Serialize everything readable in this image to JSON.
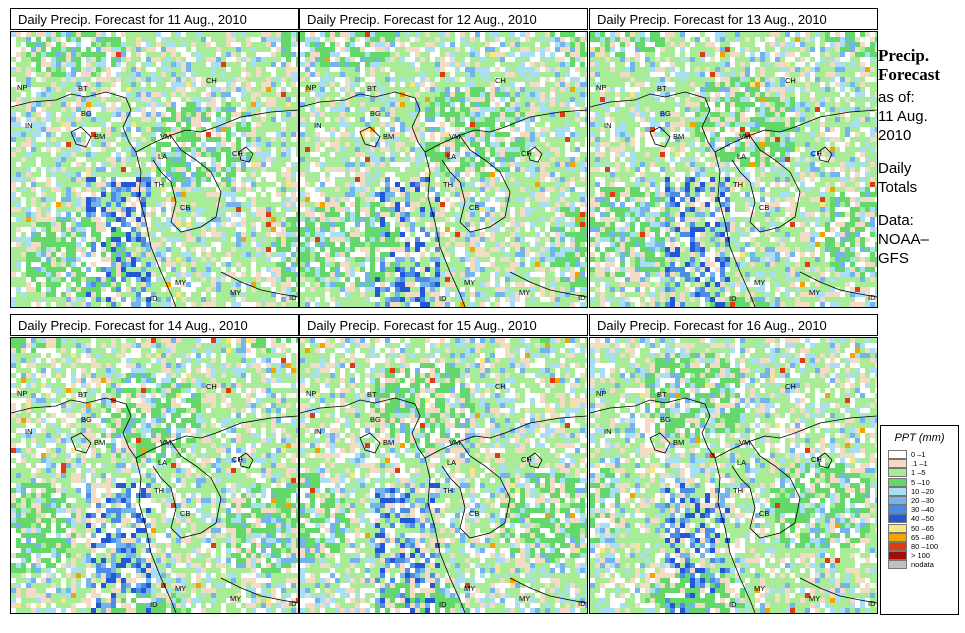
{
  "panels": [
    {
      "title": "Daily Precip. Forecast for  11 Aug., 2010",
      "seed": 11
    },
    {
      "title": "Daily Precip. Forecast for  12 Aug., 2010",
      "seed": 12
    },
    {
      "title": "Daily Precip. Forecast for  13 Aug., 2010",
      "seed": 13
    },
    {
      "title": "Daily Precip. Forecast for  14 Aug., 2010",
      "seed": 14
    },
    {
      "title": "Daily Precip. Forecast for  15 Aug., 2010",
      "seed": 15
    },
    {
      "title": "Daily Precip. Forecast for  16 Aug., 2010",
      "seed": 16
    }
  ],
  "country_labels": [
    "NP",
    "BT",
    "BG",
    "IN",
    "CH",
    "BM",
    "VM",
    "LA",
    "TH",
    "CB",
    "CH",
    "MY",
    "MY",
    "ID",
    "ID"
  ],
  "sidebar": {
    "title_line1": "Precip.",
    "title_line2": "Forecast",
    "asof": "as of:",
    "date_line1": "11 Aug.",
    "date_line2": "2010",
    "daily_line1": "Daily",
    "daily_line2": "Totals",
    "data_line1": "Data:",
    "data_line2": "NOAA–",
    "data_line3": "GFS"
  },
  "legend": {
    "title": "PPT (mm)",
    "items": [
      {
        "label": "0 –1",
        "color": "#ffffff"
      },
      {
        "label": ".1 –1",
        "color": "#f2dcc4"
      },
      {
        "label": "1 –5",
        "color": "#a8ec98"
      },
      {
        "label": "5 –10",
        "color": "#64d86a"
      },
      {
        "label": "10 –20",
        "color": "#a9dff5"
      },
      {
        "label": "20 –30",
        "color": "#73b4ee"
      },
      {
        "label": "30 –40",
        "color": "#4a8ce6"
      },
      {
        "label": "40 –50",
        "color": "#2258d8"
      },
      {
        "label": "50 –65",
        "color": "#f8e680"
      },
      {
        "label": "65 –80",
        "color": "#f2a400"
      },
      {
        "label": "80 –100",
        "color": "#e03a10"
      },
      {
        "label": "> 100",
        "color": "#a40c0c"
      },
      {
        "label": "nodata",
        "color": "#c0c0c0"
      }
    ]
  }
}
